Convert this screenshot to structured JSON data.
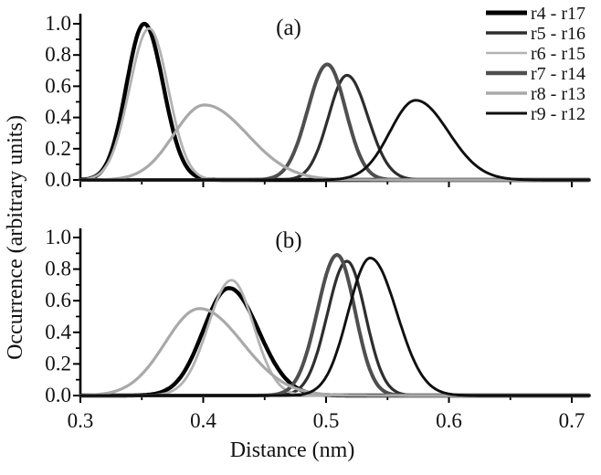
{
  "figure": {
    "xlabel": "Distance (nm)",
    "ylabel": "Occurrence (arbitrary units)"
  },
  "chart_data": {
    "type": "line",
    "title": "",
    "xlabel": "Distance (nm)",
    "ylabel": "Occurrence (arbitrary units)",
    "xlim": [
      0.3,
      0.7
    ],
    "ylim": [
      0.0,
      1.0
    ],
    "grid": false,
    "legend_position": "top-right",
    "x_tick_labels": [
      "0.3",
      "0.4",
      "0.5",
      "0.6",
      "0.7"
    ],
    "x_minor_ticks": [
      0.35,
      0.45,
      0.55,
      0.65
    ],
    "y_tick_labels": [
      "0.0",
      "0.2",
      "0.4",
      "0.6",
      "0.8",
      "1.0"
    ],
    "y_minor_ticks": [
      0.1,
      0.3,
      0.5,
      0.7,
      0.9
    ],
    "series_styles": [
      {
        "name": "r4 - r17",
        "color": "#000000",
        "line_width": 4.4,
        "legend_width": 5.0
      },
      {
        "name": "r5 - r16",
        "color": "#2e2e2e",
        "line_width": 3.2,
        "legend_width": 3.6
      },
      {
        "name": "r6 - r15",
        "color": "#b2b2b2",
        "line_width": 2.8,
        "legend_width": 2.6
      },
      {
        "name": "r7 - r14",
        "color": "#4f4f4f",
        "line_width": 4.0,
        "legend_width": 4.6
      },
      {
        "name": "r8 - r13",
        "color": "#a9a9a9",
        "line_width": 3.2,
        "legend_width": 3.6
      },
      {
        "name": "r9 - r12",
        "color": "#0f0f0f",
        "line_width": 2.9,
        "legend_width": 3.0
      }
    ],
    "panels": [
      {
        "label": "(a)",
        "series": [
          {
            "name": "r4 - r17",
            "peak_nm": 0.352,
            "peak_height": 1.0,
            "sigma_left": 0.0145,
            "sigma_right": 0.0155
          },
          {
            "name": "r5 - r16",
            "peak_nm": 0.517,
            "peak_height": 0.67,
            "sigma_left": 0.015,
            "sigma_right": 0.017
          },
          {
            "name": "r6 - r15",
            "peak_nm": 0.356,
            "peak_height": 0.97,
            "sigma_left": 0.016,
            "sigma_right": 0.0155
          },
          {
            "name": "r7 - r14",
            "peak_nm": 0.501,
            "peak_height": 0.74,
            "sigma_left": 0.016,
            "sigma_right": 0.015
          },
          {
            "name": "r8 - r13",
            "peak_nm": 0.401,
            "peak_height": 0.48,
            "sigma_left": 0.025,
            "sigma_right": 0.035
          },
          {
            "name": "r9 - r12",
            "peak_nm": 0.573,
            "peak_height": 0.51,
            "sigma_left": 0.021,
            "sigma_right": 0.0265
          }
        ]
      },
      {
        "label": "(b)",
        "series": [
          {
            "name": "r4 - r17",
            "peak_nm": 0.421,
            "peak_height": 0.68,
            "sigma_left": 0.021,
            "sigma_right": 0.024
          },
          {
            "name": "r5 - r16",
            "peak_nm": 0.517,
            "peak_height": 0.85,
            "sigma_left": 0.016,
            "sigma_right": 0.015
          },
          {
            "name": "r6 - r15",
            "peak_nm": 0.423,
            "peak_height": 0.73,
            "sigma_left": 0.019,
            "sigma_right": 0.018
          },
          {
            "name": "r7 - r14",
            "peak_nm": 0.509,
            "peak_height": 0.89,
            "sigma_left": 0.016,
            "sigma_right": 0.0145
          },
          {
            "name": "r8 - r13",
            "peak_nm": 0.397,
            "peak_height": 0.55,
            "sigma_left": 0.028,
            "sigma_right": 0.035
          },
          {
            "name": "r9 - r12",
            "peak_nm": 0.536,
            "peak_height": 0.87,
            "sigma_left": 0.018,
            "sigma_right": 0.0215
          }
        ]
      }
    ]
  }
}
